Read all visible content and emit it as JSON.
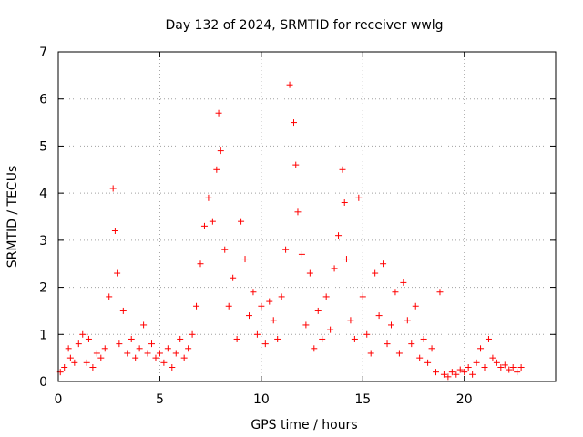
{
  "chart_data": {
    "type": "scatter",
    "title": "Day 132 of 2024, SRMTID for receiver wwlg",
    "xlabel": "GPS time / hours",
    "ylabel": "SRMTID / TECUs",
    "xlim": [
      0,
      24.5
    ],
    "ylim": [
      0,
      7
    ],
    "x_ticks": [
      0,
      5,
      10,
      15,
      20
    ],
    "y_ticks": [
      0,
      1,
      2,
      3,
      4,
      5,
      6,
      7
    ],
    "x_tick_labels": [
      "0",
      "5",
      "10",
      "15",
      "20"
    ],
    "y_tick_labels": [
      "0",
      "1",
      "2",
      "3",
      "4",
      "5",
      "6",
      "7"
    ],
    "grid": true,
    "marker": "plus",
    "series": [
      {
        "name": "SRMTID",
        "color": "#ff0000",
        "x": [
          0.1,
          0.3,
          0.5,
          0.6,
          0.8,
          1.0,
          1.2,
          1.4,
          1.5,
          1.7,
          1.9,
          2.1,
          2.3,
          2.5,
          2.7,
          2.8,
          2.9,
          3.0,
          3.2,
          3.4,
          3.6,
          3.8,
          4.0,
          4.2,
          4.4,
          4.6,
          4.8,
          5.0,
          5.2,
          5.4,
          5.6,
          5.8,
          6.0,
          6.2,
          6.4,
          6.6,
          6.8,
          7.0,
          7.2,
          7.4,
          7.6,
          7.8,
          7.9,
          8.0,
          8.2,
          8.4,
          8.6,
          8.8,
          9.0,
          9.2,
          9.4,
          9.6,
          9.8,
          10.0,
          10.2,
          10.4,
          10.6,
          10.8,
          11.0,
          11.2,
          11.4,
          11.6,
          11.7,
          11.8,
          12.0,
          12.2,
          12.4,
          12.6,
          12.8,
          13.0,
          13.2,
          13.4,
          13.6,
          13.8,
          14.0,
          14.1,
          14.2,
          14.4,
          14.6,
          14.8,
          15.0,
          15.2,
          15.4,
          15.6,
          15.8,
          16.0,
          16.2,
          16.4,
          16.6,
          16.8,
          17.0,
          17.2,
          17.4,
          17.6,
          17.8,
          18.0,
          18.2,
          18.4,
          18.6,
          18.8,
          19.0,
          19.2,
          19.4,
          19.6,
          19.8,
          20.0,
          20.2,
          20.4,
          20.6,
          20.8,
          21.0,
          21.2,
          21.4,
          21.6,
          21.8,
          22.0,
          22.2,
          22.4,
          22.6,
          22.8
        ],
        "y": [
          0.2,
          0.3,
          0.7,
          0.5,
          0.4,
          0.8,
          1.0,
          0.4,
          0.9,
          0.3,
          0.6,
          0.5,
          0.7,
          1.8,
          4.1,
          3.2,
          2.3,
          0.8,
          1.5,
          0.6,
          0.9,
          0.5,
          0.7,
          1.2,
          0.6,
          0.8,
          0.5,
          0.6,
          0.4,
          0.7,
          0.3,
          0.6,
          0.9,
          0.5,
          0.7,
          1.0,
          1.6,
          2.5,
          3.3,
          3.9,
          3.4,
          4.5,
          5.7,
          4.9,
          2.8,
          1.6,
          2.2,
          0.9,
          3.4,
          2.6,
          1.4,
          1.9,
          1.0,
          1.6,
          0.8,
          1.7,
          1.3,
          0.9,
          1.8,
          2.8,
          6.3,
          5.5,
          4.6,
          3.6,
          2.7,
          1.2,
          2.3,
          0.7,
          1.5,
          0.9,
          1.8,
          1.1,
          2.4,
          3.1,
          4.5,
          3.8,
          2.6,
          1.3,
          0.9,
          3.9,
          1.8,
          1.0,
          0.6,
          2.3,
          1.4,
          2.5,
          0.8,
          1.2,
          1.9,
          0.6,
          2.1,
          1.3,
          0.8,
          1.6,
          0.5,
          0.9,
          0.4,
          0.7,
          0.2,
          1.9,
          0.15,
          0.1,
          0.2,
          0.15,
          0.25,
          0.2,
          0.3,
          0.15,
          0.4,
          0.7,
          0.3,
          0.9,
          0.5,
          0.4,
          0.3,
          0.35,
          0.25,
          0.3,
          0.2,
          0.3
        ]
      }
    ]
  }
}
